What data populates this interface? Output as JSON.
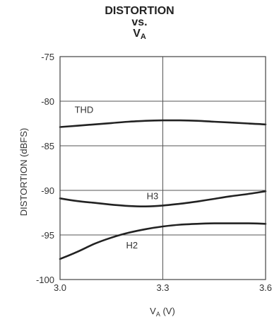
{
  "chart_data": {
    "type": "line",
    "title": [
      "DISTORTION",
      "vs.",
      "V",
      "A"
    ],
    "xlabel": [
      "V",
      "A",
      " (V)"
    ],
    "ylabel": "DISTORTION (dBFS)",
    "xlim": [
      3.0,
      3.6
    ],
    "ylim": [
      -100,
      -75
    ],
    "xticks": [
      3.0,
      3.3,
      3.6
    ],
    "xtick_labels": [
      "3.0",
      "3.3",
      "3.6"
    ],
    "yticks": [
      -100,
      -95,
      -90,
      -85,
      -80,
      -75
    ],
    "ytick_labels": [
      "-100",
      "-95",
      "-90",
      "-85",
      "-80",
      "-75"
    ],
    "grid": true,
    "series": [
      {
        "name": "THD",
        "x": [
          3.0,
          3.05,
          3.1,
          3.15,
          3.2,
          3.25,
          3.3,
          3.35,
          3.4,
          3.45,
          3.5,
          3.55,
          3.6
        ],
        "y": [
          -82.9,
          -82.75,
          -82.6,
          -82.45,
          -82.3,
          -82.2,
          -82.15,
          -82.15,
          -82.2,
          -82.3,
          -82.4,
          -82.5,
          -82.6
        ]
      },
      {
        "name": "H3",
        "x": [
          3.0,
          3.05,
          3.1,
          3.15,
          3.2,
          3.25,
          3.3,
          3.35,
          3.4,
          3.45,
          3.5,
          3.55,
          3.6
        ],
        "y": [
          -90.9,
          -91.2,
          -91.4,
          -91.6,
          -91.75,
          -91.8,
          -91.7,
          -91.5,
          -91.25,
          -90.95,
          -90.65,
          -90.4,
          -90.1
        ]
      },
      {
        "name": "H2",
        "x": [
          3.0,
          3.05,
          3.1,
          3.15,
          3.2,
          3.25,
          3.3,
          3.35,
          3.4,
          3.45,
          3.5,
          3.55,
          3.6
        ],
        "y": [
          -97.7,
          -96.9,
          -96.0,
          -95.3,
          -94.75,
          -94.35,
          -94.05,
          -93.85,
          -93.75,
          -93.7,
          -93.7,
          -93.7,
          -93.75
        ]
      }
    ],
    "curve_labels": [
      {
        "text": "THD",
        "x": 3.07,
        "y": -81.3
      },
      {
        "text": "H3",
        "x": 3.27,
        "y": -91.0
      },
      {
        "text": "H2",
        "x": 3.21,
        "y": -96.5
      }
    ],
    "colors": {
      "line": "#222222",
      "grid": "#555555",
      "frame": "#444444"
    }
  }
}
